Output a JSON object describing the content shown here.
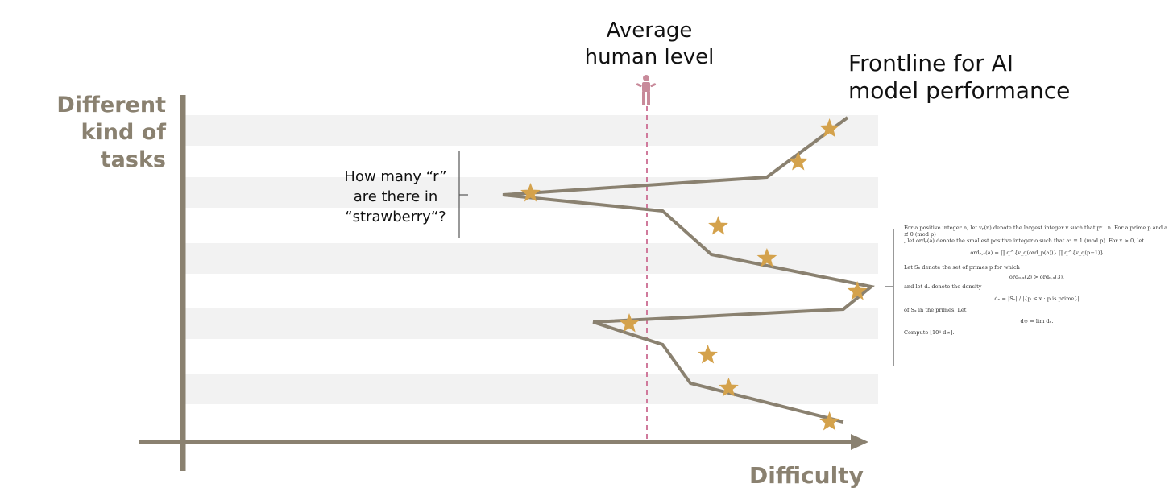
{
  "y_axis_title": [
    "Different",
    "kind of tasks"
  ],
  "x_axis_title": "Difficulty",
  "average_label": [
    "Average",
    "human level"
  ],
  "frontline_label": [
    "Frontline for AI",
    "model performance"
  ],
  "strawberry_question": [
    "How many “r”",
    "are there in",
    "“strawberry“?"
  ],
  "math_problem": {
    "line1": "For a positive integer n, let vₚ(n) denote the largest integer v such that pᵛ | n. For a prime p and a ≢ 0 (mod p)",
    "line2": ", let ordₚ(a) denote the smallest positive integer o such that aᵒ ≡ 1 (mod p). For x > 0, let",
    "formula1": "ordₚ,ₓ(a) = ∏ q^{v_q(ord_p(a))} ∏ q^{v_q(p−1)}",
    "line3": "Let Sₓ denote the set of primes p for which",
    "formula2": "ordₚ,ₓ(2) > ordₚ,ₓ(3),",
    "line4": "and let dₓ denote the density",
    "formula3": "dₓ = |Sₓ| / |{p ≤ x : p is prime}|",
    "line5": "of Sₓ in the primes. Let",
    "formula4": "d∞ = lim dₓ.",
    "line6": "Compute ⌊10⁶ d∞⌋."
  },
  "colors": {
    "axis": "#8a8170",
    "line": "#8a8170",
    "band": "#f2f2f2",
    "star": "#d4a24c",
    "average": "#d07a9c",
    "person": "#c88a9a"
  },
  "frontline_points": [
    {
      "task": 1,
      "difficulty": 0.956
    },
    {
      "task": 2,
      "difficulty": 0.84
    },
    {
      "task": 3,
      "difficulty": 0.46
    },
    {
      "task": 4,
      "difficulty": 0.69
    },
    {
      "task": 5,
      "difficulty": 0.76
    },
    {
      "task": 6,
      "difficulty": 0.99
    },
    {
      "task": 7,
      "difficulty": 0.95
    },
    {
      "task": 8,
      "difficulty": 0.59
    },
    {
      "task": 9,
      "difficulty": 0.69
    },
    {
      "task": 10,
      "difficulty": 0.73
    },
    {
      "task": 11,
      "difficulty": 0.95
    }
  ],
  "stars": [
    {
      "task": 1,
      "difficulty": 0.93
    },
    {
      "task": 2,
      "difficulty": 0.885
    },
    {
      "task": 3,
      "difficulty": 0.5
    },
    {
      "task": 4,
      "difficulty": 0.77
    },
    {
      "task": 5,
      "difficulty": 0.84
    },
    {
      "task": 6,
      "difficulty": 0.97
    },
    {
      "task": 7,
      "difficulty": 0.642
    },
    {
      "task": 8,
      "difficulty": 0.755
    },
    {
      "task": 9,
      "difficulty": 0.785
    },
    {
      "task": 10,
      "difficulty": 0.93
    }
  ],
  "average_difficulty": 0.7
}
